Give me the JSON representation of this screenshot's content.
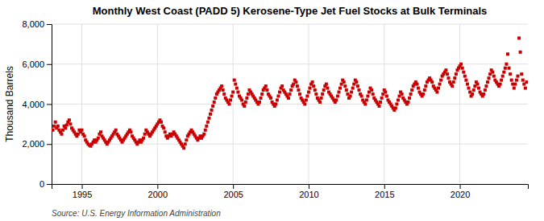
{
  "chart_data": {
    "type": "scatter",
    "title": "Monthly West Coast (PADD 5) Kerosene-Type Jet Fuel Stocks at Bulk Terminals",
    "y_label": "Thousand Barrels",
    "source": "Source: U.S. Energy Information Administration",
    "color": "#cc0000",
    "marker": "square",
    "grid": true,
    "xlim": [
      1993.0,
      2024.5
    ],
    "xticks": [
      1995,
      2000,
      2005,
      2010,
      2015,
      2020
    ],
    "ylim": [
      0,
      8000
    ],
    "yticks": [
      0,
      {
        "value": 2000,
        "label": "2,000"
      },
      {
        "value": 4000,
        "label": "4,000"
      },
      {
        "value": 6000,
        "label": "6,000"
      },
      {
        "value": 8000,
        "label": "8,000"
      }
    ],
    "x": [
      1993.083,
      1993.167,
      1993.25,
      1993.333,
      1993.417,
      1993.5,
      1993.583,
      1993.667,
      1993.75,
      1993.833,
      1993.917,
      1994.0,
      1994.083,
      1994.167,
      1994.25,
      1994.333,
      1994.417,
      1994.5,
      1994.583,
      1994.667,
      1994.75,
      1994.833,
      1994.917,
      1995.0,
      1995.083,
      1995.167,
      1995.25,
      1995.333,
      1995.417,
      1995.5,
      1995.583,
      1995.667,
      1995.75,
      1995.833,
      1995.917,
      1996.0,
      1996.083,
      1996.167,
      1996.25,
      1996.333,
      1996.417,
      1996.5,
      1996.583,
      1996.667,
      1996.75,
      1996.833,
      1996.917,
      1997.0,
      1997.083,
      1997.167,
      1997.25,
      1997.333,
      1997.417,
      1997.5,
      1997.583,
      1997.667,
      1997.75,
      1997.833,
      1997.917,
      1998.0,
      1998.083,
      1998.167,
      1998.25,
      1998.333,
      1998.417,
      1998.5,
      1998.583,
      1998.667,
      1998.75,
      1998.833,
      1998.917,
      1999.0,
      1999.083,
      1999.167,
      1999.25,
      1999.333,
      1999.417,
      1999.5,
      1999.583,
      1999.667,
      1999.75,
      1999.833,
      1999.917,
      2000.0,
      2000.083,
      2000.167,
      2000.25,
      2000.333,
      2000.417,
      2000.5,
      2000.583,
      2000.667,
      2000.75,
      2000.833,
      2000.917,
      2001.0,
      2001.083,
      2001.167,
      2001.25,
      2001.333,
      2001.417,
      2001.5,
      2001.583,
      2001.667,
      2001.75,
      2001.833,
      2001.917,
      2002.0,
      2002.083,
      2002.167,
      2002.25,
      2002.333,
      2002.417,
      2002.5,
      2002.583,
      2002.667,
      2002.75,
      2002.833,
      2002.917,
      2003.0,
      2003.083,
      2003.167,
      2003.25,
      2003.333,
      2003.417,
      2003.5,
      2003.583,
      2003.667,
      2003.75,
      2003.833,
      2003.917,
      2004.0,
      2004.083,
      2004.167,
      2004.25,
      2004.333,
      2004.417,
      2004.5,
      2004.583,
      2004.667,
      2004.75,
      2004.833,
      2004.917,
      2005.0,
      2005.083,
      2005.167,
      2005.25,
      2005.333,
      2005.417,
      2005.5,
      2005.583,
      2005.667,
      2005.75,
      2005.833,
      2005.917,
      2006.0,
      2006.083,
      2006.167,
      2006.25,
      2006.333,
      2006.417,
      2006.5,
      2006.583,
      2006.667,
      2006.75,
      2006.833,
      2006.917,
      2007.0,
      2007.083,
      2007.167,
      2007.25,
      2007.333,
      2007.417,
      2007.5,
      2007.583,
      2007.667,
      2007.75,
      2007.833,
      2007.917,
      2008.0,
      2008.083,
      2008.167,
      2008.25,
      2008.333,
      2008.417,
      2008.5,
      2008.583,
      2008.667,
      2008.75,
      2008.833,
      2008.917,
      2009.0,
      2009.083,
      2009.167,
      2009.25,
      2009.333,
      2009.417,
      2009.5,
      2009.583,
      2009.667,
      2009.75,
      2009.833,
      2009.917,
      2010.0,
      2010.083,
      2010.167,
      2010.25,
      2010.333,
      2010.417,
      2010.5,
      2010.583,
      2010.667,
      2010.75,
      2010.833,
      2010.917,
      2011.0,
      2011.083,
      2011.167,
      2011.25,
      2011.333,
      2011.417,
      2011.5,
      2011.583,
      2011.667,
      2011.75,
      2011.833,
      2011.917,
      2012.0,
      2012.083,
      2012.167,
      2012.25,
      2012.333,
      2012.417,
      2012.5,
      2012.583,
      2012.667,
      2012.75,
      2012.833,
      2012.917,
      2013.0,
      2013.083,
      2013.167,
      2013.25,
      2013.333,
      2013.417,
      2013.5,
      2013.583,
      2013.667,
      2013.75,
      2013.833,
      2013.917,
      2014.0,
      2014.083,
      2014.167,
      2014.25,
      2014.333,
      2014.417,
      2014.5,
      2014.583,
      2014.667,
      2014.75,
      2014.833,
      2014.917,
      2015.0,
      2015.083,
      2015.167,
      2015.25,
      2015.333,
      2015.417,
      2015.5,
      2015.583,
      2015.667,
      2015.75,
      2015.833,
      2015.917,
      2016.0,
      2016.083,
      2016.167,
      2016.25,
      2016.333,
      2016.417,
      2016.5,
      2016.583,
      2016.667,
      2016.75,
      2016.833,
      2016.917,
      2017.0,
      2017.083,
      2017.167,
      2017.25,
      2017.333,
      2017.417,
      2017.5,
      2017.583,
      2017.667,
      2017.75,
      2017.833,
      2017.917,
      2018.0,
      2018.083,
      2018.167,
      2018.25,
      2018.333,
      2018.417,
      2018.5,
      2018.583,
      2018.667,
      2018.75,
      2018.833,
      2018.917,
      2019.0,
      2019.083,
      2019.167,
      2019.25,
      2019.333,
      2019.417,
      2019.5,
      2019.583,
      2019.667,
      2019.75,
      2019.833,
      2019.917,
      2020.0,
      2020.083,
      2020.167,
      2020.25,
      2020.333,
      2020.417,
      2020.5,
      2020.583,
      2020.667,
      2020.75,
      2020.833,
      2020.917,
      2021.0,
      2021.083,
      2021.167,
      2021.25,
      2021.333,
      2021.417,
      2021.5,
      2021.583,
      2021.667,
      2021.75,
      2021.833,
      2021.917,
      2022.0,
      2022.083,
      2022.167,
      2022.25,
      2022.333,
      2022.417,
      2022.5,
      2022.583,
      2022.667,
      2022.75,
      2022.833,
      2022.917,
      2023.0,
      2023.083,
      2023.167,
      2023.25,
      2023.333,
      2023.417,
      2023.5,
      2023.583,
      2023.667,
      2023.75,
      2023.833,
      2023.917,
      2024.0,
      2024.083,
      2024.167,
      2024.25,
      2024.333,
      2024.417
    ],
    "values": [
      2700,
      2900,
      3100,
      2800,
      2900,
      2700,
      2600,
      2500,
      2700,
      2900,
      2800,
      2950,
      3100,
      3200,
      3000,
      2800,
      2700,
      2600,
      2500,
      2400,
      2500,
      2700,
      2600,
      2700,
      2500,
      2400,
      2200,
      2100,
      2000,
      1950,
      1900,
      2000,
      2100,
      2200,
      2100,
      2200,
      2300,
      2500,
      2600,
      2400,
      2300,
      2200,
      2100,
      2000,
      2100,
      2200,
      2300,
      2400,
      2500,
      2600,
      2700,
      2500,
      2400,
      2300,
      2200,
      2100,
      2200,
      2300,
      2400,
      2500,
      2600,
      2700,
      2600,
      2400,
      2300,
      2200,
      2100,
      2000,
      2100,
      2200,
      2100,
      2200,
      2300,
      2500,
      2700,
      2600,
      2500,
      2400,
      2500,
      2600,
      2700,
      2800,
      2900,
      3000,
      3100,
      3200,
      3100,
      2900,
      2800,
      2600,
      2400,
      2300,
      2400,
      2500,
      2400,
      2500,
      2600,
      2500,
      2400,
      2300,
      2200,
      2100,
      2000,
      1900,
      1800,
      2000,
      2200,
      2400,
      2500,
      2600,
      2700,
      2600,
      2500,
      2400,
      2300,
      2200,
      2300,
      2400,
      2300,
      2400,
      2500,
      2700,
      2900,
      3100,
      3300,
      3500,
      3700,
      3900,
      4100,
      4300,
      4500,
      4600,
      4700,
      4800,
      4900,
      4700,
      4500,
      4300,
      4200,
      4100,
      4000,
      4200,
      4400,
      4600,
      5200,
      5000,
      4800,
      4600,
      4400,
      4300,
      4200,
      4000,
      3900,
      4100,
      4300,
      4500,
      4700,
      4600,
      4500,
      4400,
      4300,
      4200,
      4100,
      4000,
      4100,
      4300,
      4500,
      4700,
      4800,
      4900,
      4700,
      4500,
      4400,
      4300,
      4100,
      4000,
      3900,
      4000,
      4200,
      4400,
      4600,
      4800,
      4900,
      4700,
      4600,
      4500,
      4400,
      4300,
      4500,
      4700,
      4900,
      5000,
      5200,
      5100,
      4900,
      4700,
      4500,
      4300,
      4200,
      4100,
      4000,
      4200,
      4400,
      4600,
      4800,
      5000,
      5100,
      4900,
      4700,
      4500,
      4300,
      4200,
      4100,
      4300,
      4500,
      4700,
      4900,
      5000,
      4800,
      4600,
      4500,
      4400,
      4300,
      4200,
      4100,
      4200,
      4400,
      4600,
      4800,
      5000,
      5200,
      5100,
      4900,
      4700,
      4500,
      4300,
      4400,
      4600,
      4800,
      5000,
      5200,
      5100,
      4900,
      4700,
      4500,
      4400,
      4200,
      4100,
      4000,
      4200,
      4400,
      4600,
      4800,
      4700,
      4500,
      4300,
      4200,
      4100,
      4000,
      3900,
      4100,
      4300,
      4500,
      4700,
      4600,
      4400,
      4200,
      4100,
      4000,
      3900,
      3800,
      3700,
      3800,
      4000,
      4200,
      4400,
      4600,
      4500,
      4300,
      4200,
      4100,
      4000,
      4100,
      4300,
      4500,
      4700,
      4900,
      5000,
      5100,
      5000,
      4800,
      4600,
      4500,
      4400,
      4500,
      4700,
      4900,
      5100,
      5200,
      5300,
      5200,
      5100,
      4900,
      4800,
      4700,
      4600,
      4800,
      5000,
      5200,
      5400,
      5500,
      5600,
      5700,
      5500,
      5300,
      5100,
      5000,
      4900,
      5100,
      5300,
      5500,
      5700,
      5800,
      5900,
      6000,
      5800,
      5600,
      5400,
      5200,
      5000,
      4800,
      4600,
      4400,
      4500,
      4700,
      4900,
      5100,
      5000,
      4800,
      4600,
      4500,
      4400,
      4500,
      4700,
      4900,
      5100,
      5300,
      5500,
      5700,
      5600,
      5400,
      5200,
      5100,
      5000,
      4900,
      5000,
      5200,
      5400,
      5600,
      5800,
      6000,
      6500,
      5800,
      5500,
      5200,
      5000,
      4800,
      5000,
      5200,
      5400,
      7300,
      6600,
      5500,
      5200,
      5000,
      4800,
      5100
    ]
  }
}
